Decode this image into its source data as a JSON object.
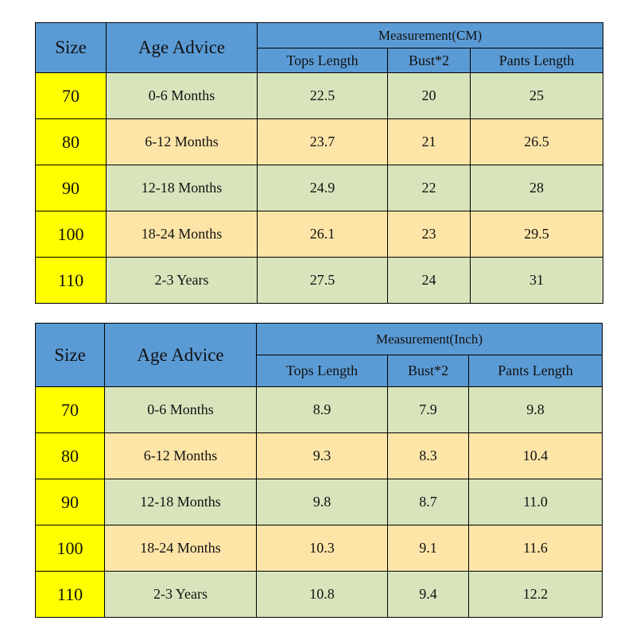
{
  "tables": [
    {
      "headers": {
        "size": "Size",
        "age": "Age Advice",
        "group": "Measurement(CM)",
        "columns": [
          "Tops Length",
          "Bust*2",
          "Pants Length"
        ]
      },
      "rows": [
        [
          "70",
          "0-6 Months",
          "22.5",
          "20",
          "25"
        ],
        [
          "80",
          "6-12 Months",
          "23.7",
          "21",
          "26.5"
        ],
        [
          "90",
          "12-18 Months",
          "24.9",
          "22",
          "28"
        ],
        [
          "100",
          "18-24 Months",
          "26.1",
          "23",
          "29.5"
        ],
        [
          "110",
          "2-3 Years",
          "27.5",
          "24",
          "31"
        ]
      ]
    },
    {
      "headers": {
        "size": "Size",
        "age": "Age Advice",
        "group": "Measurement(Inch)",
        "columns": [
          "Tops Length",
          "Bust*2",
          "Pants Length"
        ]
      },
      "rows": [
        [
          "70",
          "0-6 Months",
          "8.9",
          "7.9",
          "9.8"
        ],
        [
          "80",
          "6-12 Months",
          "9.3",
          "8.3",
          "10.4"
        ],
        [
          "90",
          "12-18 Months",
          "9.8",
          "8.7",
          "11.0"
        ],
        [
          "100",
          "18-24 Months",
          "10.3",
          "9.1",
          "11.6"
        ],
        [
          "110",
          "2-3 Years",
          "10.8",
          "9.4",
          "12.2"
        ]
      ]
    }
  ]
}
